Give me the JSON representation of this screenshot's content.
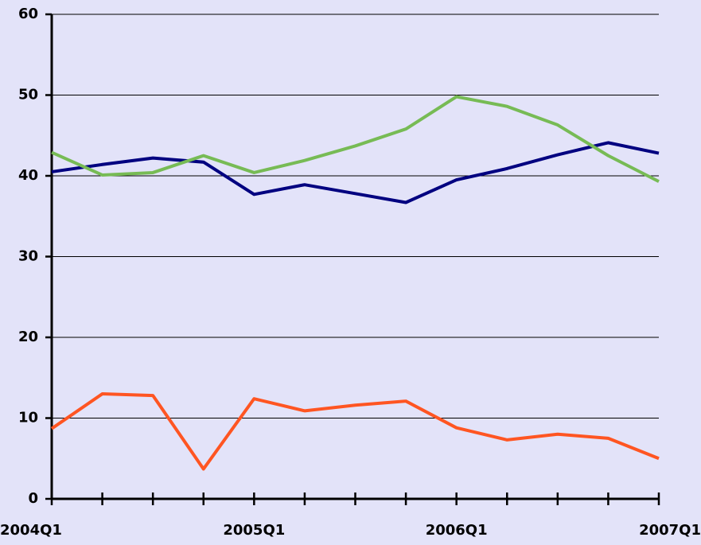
{
  "chart_data": {
    "type": "line",
    "categories": [
      "2004Q1",
      null,
      null,
      null,
      "2005Q1",
      null,
      null,
      null,
      "2006Q1",
      null,
      null,
      null,
      "2007Q1"
    ],
    "series": [
      {
        "color": "#000080",
        "values": [
          40.5,
          41.4,
          42.2,
          41.7,
          37.7,
          38.9,
          37.8,
          36.7,
          39.5,
          40.9,
          42.6,
          44.1,
          42.8
        ]
      },
      {
        "color": "#77bb55",
        "values": [
          42.9,
          40.1,
          40.4,
          42.5,
          40.4,
          41.9,
          43.7,
          45.8,
          49.8,
          48.6,
          46.3,
          42.5,
          39.3
        ]
      },
      {
        "color": "#ff5522",
        "values": [
          8.7,
          13.0,
          12.8,
          3.7,
          12.4,
          10.9,
          11.6,
          12.1,
          8.8,
          7.3,
          8.0,
          7.5,
          5.0
        ]
      }
    ],
    "ylim": [
      0,
      60
    ],
    "yticks": [
      0,
      10,
      20,
      30,
      40,
      50,
      60
    ],
    "grid": true
  }
}
